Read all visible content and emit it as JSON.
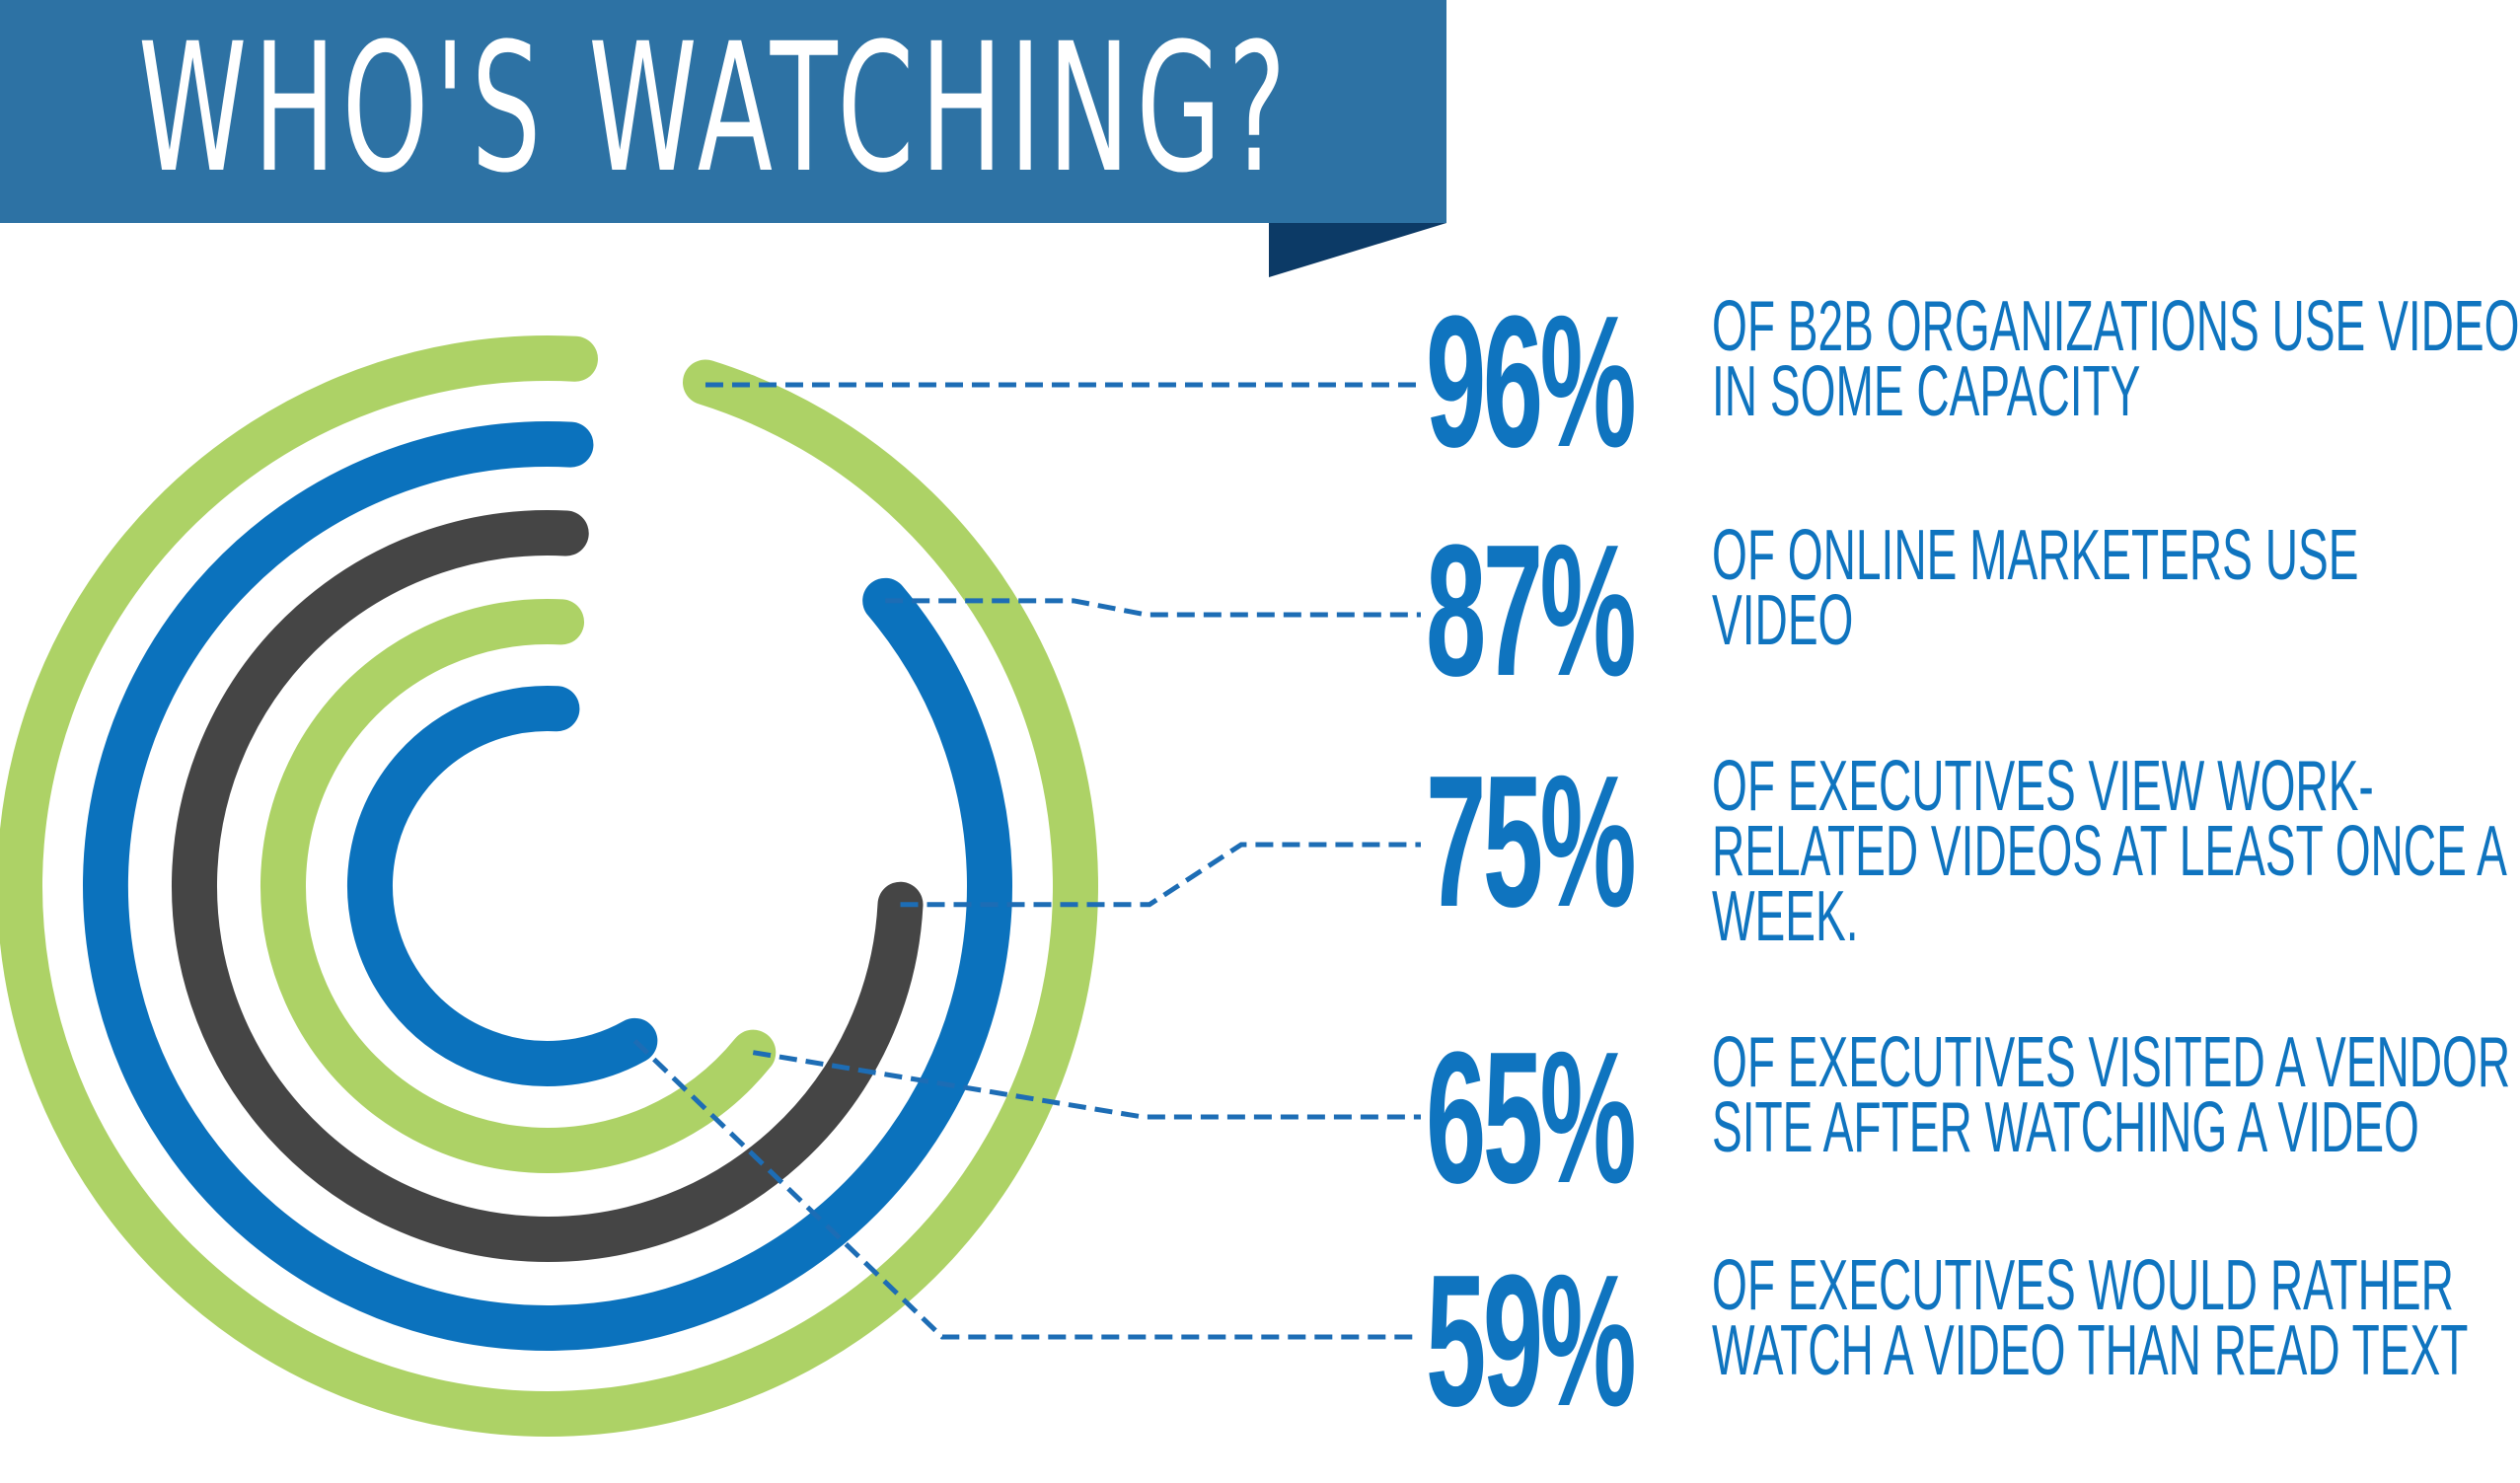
{
  "title": "WHO'S WATCHING?",
  "colors": {
    "banner": "#2d72a4",
    "banner_fold": "#0c3a66",
    "green": "#add266",
    "blue": "#0b72bd",
    "dark": "#454545",
    "text": "#0f74bf",
    "leader": "#1d6db5"
  },
  "stats": [
    {
      "value": "96%",
      "line1": "OF B2B ORGANIZATIONS USE VIDEO",
      "line2": "IN SOME CAPACITY",
      "line3": ""
    },
    {
      "value": "87%",
      "line1": "OF ONLINE MARKETERS USE",
      "line2": "VIDEO",
      "line3": ""
    },
    {
      "value": "75%",
      "line1": "OF EXECUTIVES VIEW WORK-",
      "line2": "RELATED VIDEOS AT LEAST ONCE A",
      "line3": "WEEK."
    },
    {
      "value": "65%",
      "line1": "OF EXECUTIVES VISITED A VENDOR",
      "line2": "SITE AFTER WATCHING A VIDEO",
      "line3": ""
    },
    {
      "value": "59%",
      "line1": "OF EXECUTIVES WOULD RATHER",
      "line2": "WATCH A VIDEO THAN READ TEXT",
      "line3": ""
    }
  ],
  "chart_data": {
    "type": "radial bar",
    "categories": [
      "B2B organizations use video in some capacity",
      "Online marketers use video",
      "Executives view work-related videos at least once a week",
      "Executives visited a vendor site after watching a video",
      "Executives would rather watch a video than read text"
    ],
    "values": [
      96,
      87,
      75,
      65,
      59
    ],
    "unit": "%",
    "ring_colors": [
      "#add266",
      "#0b72bd",
      "#454545",
      "#add266",
      "#0b72bd"
    ]
  }
}
